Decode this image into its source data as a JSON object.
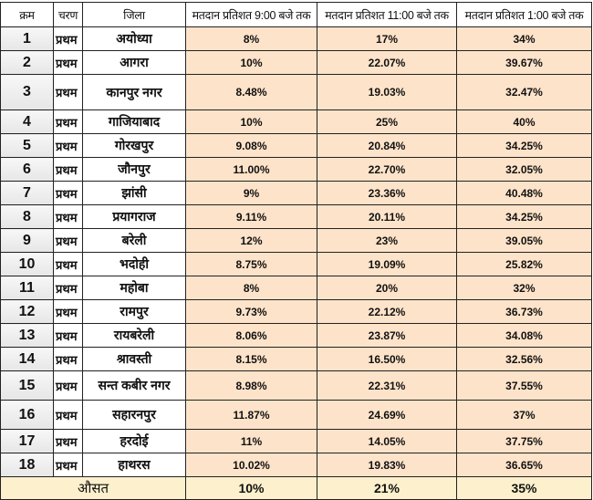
{
  "headers": [
    "क्रम",
    "चरण",
    "जिला",
    "मतदान प्रतिशत 9:00 बजे तक",
    "मतदान प्रतिशत 11:00 बजे तक",
    "मतदान प्रतिशत 1:00 बजे तक"
  ],
  "rows": [
    {
      "num": "1",
      "phase": "प्रथम",
      "district": "अयोध्या",
      "p9": "8%",
      "p11": "17%",
      "p1": "34%"
    },
    {
      "num": "2",
      "phase": "प्रथम",
      "district": "आगरा",
      "p9": "10%",
      "p11": "22.07%",
      "p1": "39.67%"
    },
    {
      "num": "3",
      "phase": "प्रथम",
      "district": "कानपुर नगर",
      "p9": "8.48%",
      "p11": "19.03%",
      "p1": "32.47%"
    },
    {
      "num": "4",
      "phase": "प्रथम",
      "district": "गाजियाबाद",
      "p9": "10%",
      "p11": "25%",
      "p1": "40%"
    },
    {
      "num": "5",
      "phase": "प्रथम",
      "district": "गोरखपुर",
      "p9": "9.08%",
      "p11": "20.84%",
      "p1": "34.25%"
    },
    {
      "num": "6",
      "phase": "प्रथम",
      "district": "जौनपुर",
      "p9": "11.00%",
      "p11": "22.70%",
      "p1": "32.05%"
    },
    {
      "num": "7",
      "phase": "प्रथम",
      "district": "झांसी",
      "p9": "9%",
      "p11": "23.36%",
      "p1": "40.48%"
    },
    {
      "num": "8",
      "phase": "प्रथम",
      "district": "प्रयागराज",
      "p9": "9.11%",
      "p11": "20.11%",
      "p1": "34.25%"
    },
    {
      "num": "9",
      "phase": "प्रथम",
      "district": "बरेली",
      "p9": "12%",
      "p11": "23%",
      "p1": "39.05%"
    },
    {
      "num": "10",
      "phase": "प्रथम",
      "district": "भदोही",
      "p9": "8.75%",
      "p11": "19.09%",
      "p1": "25.82%"
    },
    {
      "num": "11",
      "phase": "प्रथम",
      "district": "महोबा",
      "p9": "8%",
      "p11": "20%",
      "p1": "32%"
    },
    {
      "num": "12",
      "phase": "प्रथम",
      "district": "रामपुर",
      "p9": "9.73%",
      "p11": "22.12%",
      "p1": "36.73%"
    },
    {
      "num": "13",
      "phase": "प्रथम",
      "district": "रायबरेली",
      "p9": "8.06%",
      "p11": "23.87%",
      "p1": "34.08%"
    },
    {
      "num": "14",
      "phase": "प्रथम",
      "district": "श्रावस्ती",
      "p9": "8.15%",
      "p11": "16.50%",
      "p1": "32.56%"
    },
    {
      "num": "15",
      "phase": "प्रथम",
      "district": "सन्त कबीर नगर",
      "p9": "8.98%",
      "p11": "22.31%",
      "p1": "37.55%"
    },
    {
      "num": "16",
      "phase": "प्रथम",
      "district": "सहारनपुर",
      "p9": "11.87%",
      "p11": "24.69%",
      "p1": "37%"
    },
    {
      "num": "17",
      "phase": "प्रथम",
      "district": "हरदोई",
      "p9": "11%",
      "p11": "14.05%",
      "p1": "37.75%"
    },
    {
      "num": "18",
      "phase": "प्रथम",
      "district": "हाथरस",
      "p9": "10.02%",
      "p11": "19.83%",
      "p1": "36.65%"
    }
  ],
  "average": {
    "label": "औसत",
    "p9": "10%",
    "p11": "21%",
    "p1": "35%"
  }
}
